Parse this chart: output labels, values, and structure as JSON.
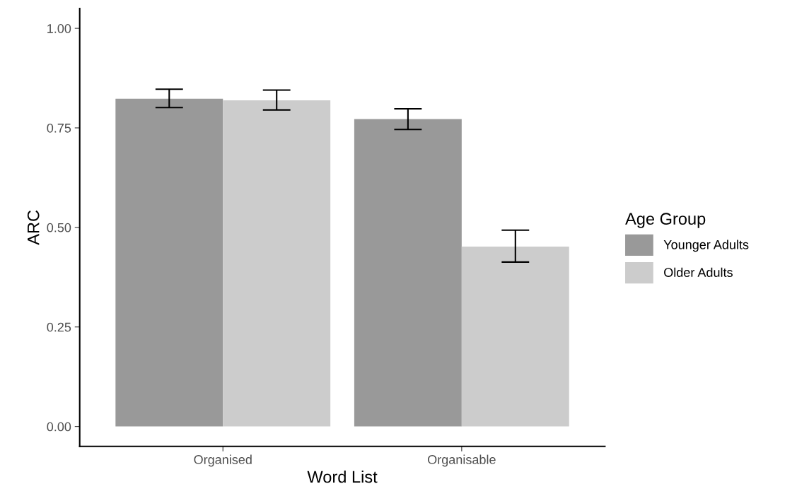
{
  "chart_data": {
    "type": "bar",
    "xlabel": "Word List",
    "ylabel": "ARC",
    "legend_title": "Age Group",
    "legend": "right",
    "grid": false,
    "categories": [
      "Organised",
      "Organisable"
    ],
    "series": [
      {
        "name": "Younger Adults",
        "color": "#999999",
        "values": [
          0.823,
          0.772
        ],
        "errors": [
          [
            0.801,
            0.847
          ],
          [
            0.746,
            0.798
          ]
        ]
      },
      {
        "name": "Older Adults",
        "color": "#cccccc",
        "values": [
          0.819,
          0.452
        ],
        "errors": [
          [
            0.795,
            0.845
          ],
          [
            0.413,
            0.493
          ]
        ]
      }
    ],
    "ylim": [
      -0.05,
      1.05
    ],
    "yticks": [
      {
        "value": 0,
        "label": "0.00"
      },
      {
        "value": 0.25,
        "label": "0.25"
      },
      {
        "value": 0.5,
        "label": "0.50"
      },
      {
        "value": 0.75,
        "label": "0.75"
      },
      {
        "value": 1,
        "label": "1.00"
      }
    ]
  }
}
